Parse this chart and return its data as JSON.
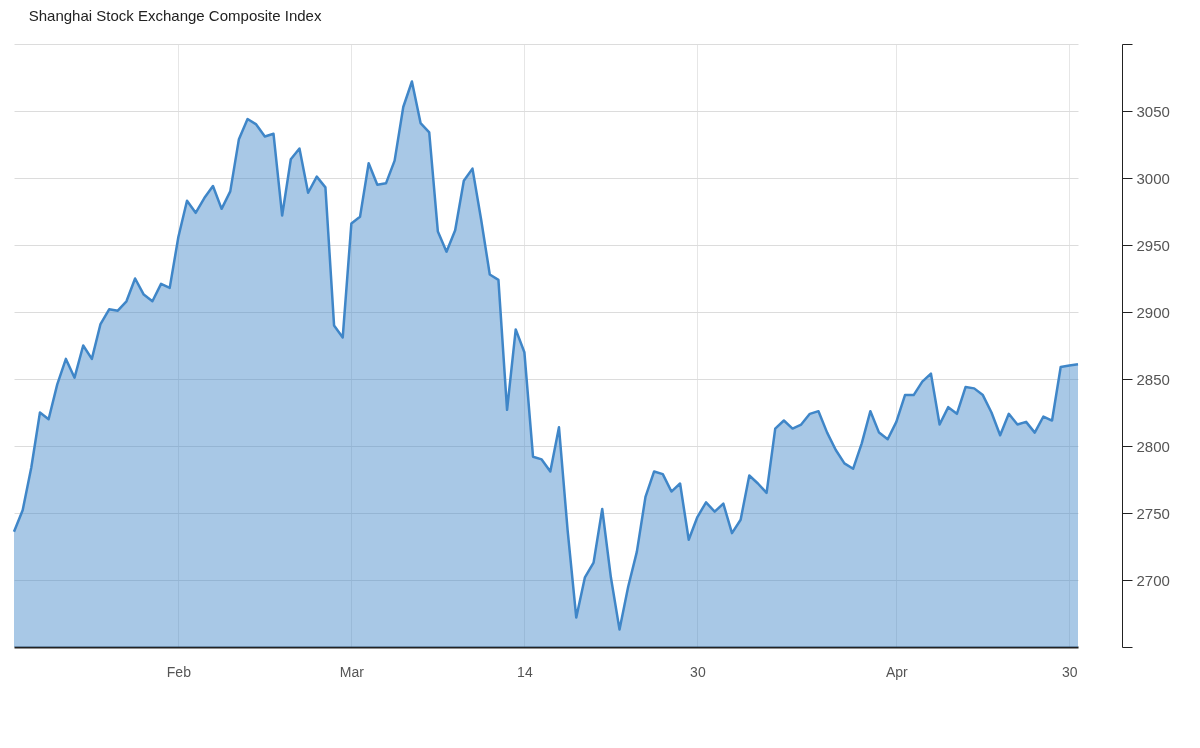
{
  "chart_data": {
    "type": "area",
    "title": "Shanghai Stock Exchange Composite Index",
    "categories": [
      null,
      null,
      null,
      null,
      null,
      null,
      null,
      null,
      null,
      null,
      null,
      null,
      null,
      null,
      null,
      null,
      null,
      null,
      null,
      "Feb",
      null,
      null,
      null,
      null,
      null,
      null,
      null,
      null,
      null,
      null,
      null,
      null,
      null,
      null,
      null,
      null,
      null,
      null,
      null,
      "Mar",
      null,
      null,
      null,
      null,
      null,
      null,
      null,
      null,
      null,
      null,
      null,
      null,
      null,
      null,
      null,
      null,
      null,
      null,
      null,
      "14",
      null,
      null,
      null,
      null,
      null,
      null,
      null,
      null,
      null,
      null,
      null,
      null,
      null,
      null,
      null,
      null,
      null,
      null,
      null,
      "30",
      null,
      null,
      null,
      null,
      null,
      null,
      null,
      null,
      null,
      null,
      null,
      null,
      null,
      null,
      null,
      null,
      null,
      null,
      null,
      null,
      null,
      null,
      "Apr",
      null,
      null,
      null,
      null,
      null,
      null,
      null,
      null,
      null,
      null,
      null,
      null,
      null,
      null,
      null,
      null,
      null,
      null,
      null,
      "30",
      null
    ],
    "series": [
      {
        "color": "#3f86c8",
        "values": [
          2736,
          2752,
          2784,
          2825,
          2820,
          2846,
          2865,
          2851,
          2875,
          2865,
          2891,
          2902,
          2901,
          2908,
          2925,
          2913,
          2908,
          2921,
          2918,
          2956,
          2983,
          2974,
          2985,
          2994,
          2977,
          2990,
          3029,
          3044,
          3040,
          3031,
          3033,
          2972,
          3014,
          3022,
          2989,
          3001,
          2993,
          2890,
          2881,
          2966,
          2971,
          3011,
          2995,
          2996,
          3013,
          3053,
          3072,
          3041,
          3034,
          2960,
          2945,
          2961,
          2998,
          3007,
          2969,
          2928,
          2924,
          2827,
          2887,
          2870,
          2792,
          2790,
          2781,
          2814,
          2737,
          2672,
          2702,
          2713,
          2753,
          2702,
          2663,
          2695,
          2721,
          2762,
          2781,
          2779,
          2766,
          2772,
          2730,
          2747,
          2758,
          2751,
          2757,
          2735,
          2745,
          2778,
          2772,
          2765,
          2813,
          2819,
          2813,
          2816,
          2824,
          2826,
          2810,
          2797,
          2787,
          2783,
          2802,
          2826,
          2810,
          2805,
          2818,
          2838,
          2838,
          2848,
          2854,
          2816,
          2829,
          2824,
          2844,
          2843,
          2838,
          2825,
          2808,
          2824,
          2816,
          2818,
          2810,
          2822,
          2819,
          2859,
          2860,
          2861
        ]
      }
    ],
    "ylim": [
      2650,
      3100
    ],
    "yticks": [
      {
        "value": 2650,
        "label": null
      },
      2700,
      2750,
      2800,
      2850,
      2900,
      2950,
      3000,
      3050,
      {
        "value": 3100,
        "label": null
      }
    ],
    "grid": true
  }
}
